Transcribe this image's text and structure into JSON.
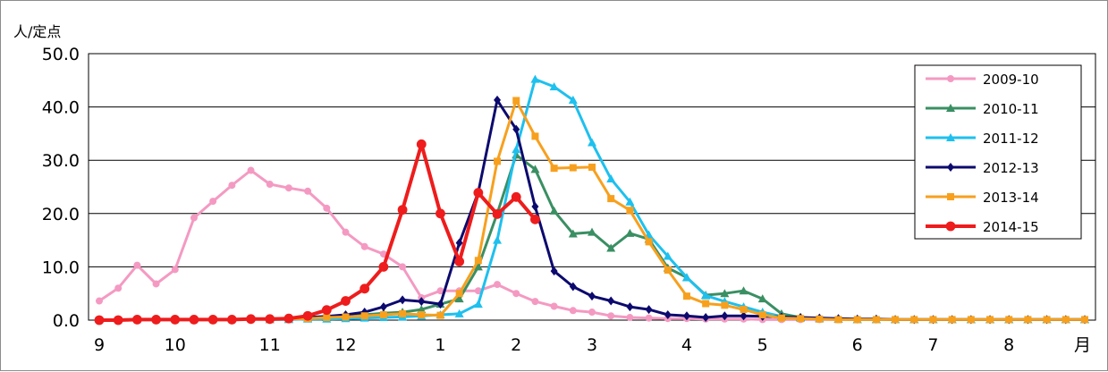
{
  "chart_data": {
    "type": "line",
    "ylabel": "人/定点",
    "x_unit": "月",
    "ylim": [
      0,
      50
    ],
    "yticks": [
      "50.0",
      "40.0",
      "30.0",
      "20.0",
      "10.0",
      "0.0"
    ],
    "month_ticks": [
      {
        "label": "9",
        "week": 1
      },
      {
        "label": "10",
        "week": 5
      },
      {
        "label": "11",
        "week": 10
      },
      {
        "label": "12",
        "week": 14
      },
      {
        "label": "1",
        "week": 19
      },
      {
        "label": "2",
        "week": 23
      },
      {
        "label": "3",
        "week": 27
      },
      {
        "label": "4",
        "week": 32
      },
      {
        "label": "5",
        "week": 36
      },
      {
        "label": "6",
        "week": 41
      },
      {
        "label": "7",
        "week": 45
      },
      {
        "label": "8",
        "week": 49
      }
    ],
    "x_range": [
      1,
      53
    ],
    "grid": true,
    "legend_position": "top-right",
    "series": [
      {
        "name": "2009-10",
        "color": "#f49ac2",
        "marker": "circle",
        "values": [
          3.6,
          6.0,
          10.3,
          6.8,
          9.5,
          19.2,
          22.3,
          25.3,
          28.1,
          25.5,
          24.8,
          24.2,
          21.0,
          16.5,
          13.8,
          12.4,
          10.0,
          4.2,
          5.5,
          5.5,
          5.5,
          6.7,
          5.0,
          3.5,
          2.6,
          1.8,
          1.5,
          0.8,
          0.5,
          0.4,
          0.3,
          0.3,
          0.2,
          0.2,
          0.2,
          0.1,
          0.1,
          0.1,
          0.1,
          0.1,
          0.1,
          0.1,
          0.1,
          0.1,
          0.1,
          0.1,
          0.1,
          0.1,
          0.1,
          0.1,
          0.1,
          0.1,
          0.1
        ]
      },
      {
        "name": "2010-11",
        "color": "#3a8f63",
        "marker": "triangle",
        "start_week": 10,
        "values": [
          0.1,
          0.2,
          0.3,
          0.5,
          0.8,
          1.0,
          1.3,
          1.5,
          2.0,
          3.0,
          4.0,
          10.0,
          20.0,
          31.0,
          28.3,
          20.5,
          16.2,
          16.5,
          13.5,
          16.3,
          15.2,
          9.8,
          8.0,
          4.7,
          5.0,
          5.5,
          4.0,
          1.2,
          0.5,
          0.3,
          0.2,
          0.1,
          0.1,
          0.1,
          0.1,
          0.1,
          0.1,
          0.1,
          0.1,
          0.1,
          0.1,
          0.1,
          0.1,
          0.1
        ]
      },
      {
        "name": "2011-12",
        "color": "#1ec0ee",
        "marker": "triangle",
        "start_week": 10,
        "values": [
          0.1,
          0.1,
          0.2,
          0.2,
          0.3,
          0.4,
          0.5,
          0.6,
          0.8,
          1.0,
          1.2,
          3.0,
          15.0,
          32.0,
          45.2,
          43.8,
          41.3,
          33.3,
          26.5,
          22.2,
          16.0,
          12.0,
          8.0,
          4.6,
          3.5,
          2.5,
          1.5,
          0.7,
          0.4,
          0.3,
          0.2,
          0.1,
          0.1,
          0.1,
          0.1,
          0.1,
          0.1,
          0.1,
          0.1,
          0.1,
          0.1,
          0.1,
          0.1,
          0.1
        ]
      },
      {
        "name": "2012-13",
        "color": "#0c0a6e",
        "marker": "diamond",
        "start_week": 10,
        "values": [
          0.2,
          0.3,
          0.5,
          0.7,
          1.0,
          1.5,
          2.5,
          3.8,
          3.5,
          3.0,
          14.5,
          24.0,
          41.3,
          35.8,
          21.3,
          9.2,
          6.3,
          4.5,
          3.6,
          2.5,
          2.0,
          1.0,
          0.8,
          0.5,
          0.8,
          0.8,
          0.7,
          0.6,
          0.5,
          0.4,
          0.3,
          0.2,
          0.2,
          0.1,
          0.1,
          0.1,
          0.1,
          0.1,
          0.1,
          0.1,
          0.1,
          0.1,
          0.1,
          0.1
        ]
      },
      {
        "name": "2013-14",
        "color": "#f7a01e",
        "marker": "square",
        "start_week": 10,
        "values": [
          0.1,
          0.2,
          0.3,
          0.5,
          0.6,
          0.8,
          1.0,
          1.2,
          1.0,
          0.9,
          5.0,
          11.2,
          29.8,
          41.2,
          34.5,
          28.5,
          28.6,
          28.7,
          22.8,
          20.6,
          14.7,
          9.4,
          4.5,
          3.1,
          2.8,
          2.0,
          1.0,
          0.4,
          0.3,
          0.2,
          0.1,
          0.1,
          0.1,
          0.1,
          0.1,
          0.1,
          0.1,
          0.1,
          0.1,
          0.1,
          0.1,
          0.1,
          0.1,
          0.1
        ]
      },
      {
        "name": "2014-15",
        "color": "#ee1c1c",
        "marker": "circle",
        "values": [
          0.0,
          0.0,
          0.1,
          0.1,
          0.1,
          0.1,
          0.1,
          0.1,
          0.2,
          0.2,
          0.3,
          0.8,
          1.9,
          3.6,
          5.9,
          10.0,
          20.7,
          33.0,
          20.0,
          11.0,
          23.9,
          19.9,
          23.1,
          18.9
        ]
      }
    ]
  }
}
